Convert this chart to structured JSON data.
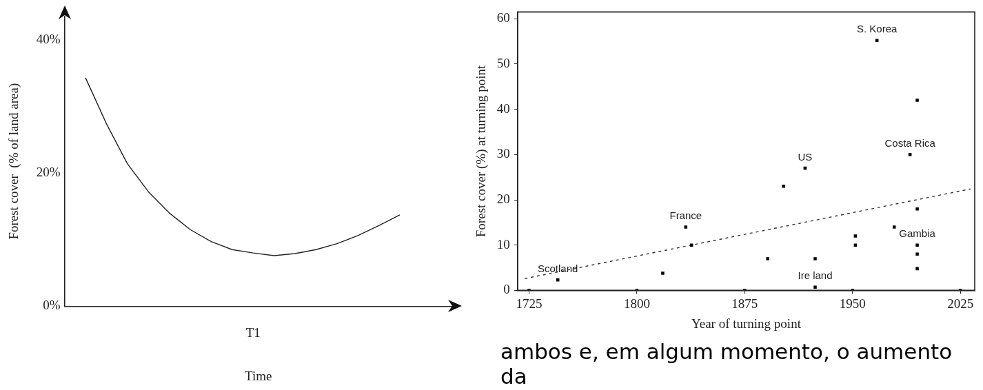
{
  "chart_data": [
    {
      "type": "line",
      "xlabel": "Time",
      "ylabel": "Forest cover  (% of land area)",
      "categories": [
        null,
        null,
        null,
        null,
        null,
        null,
        null,
        null,
        "T1",
        null,
        null,
        null,
        null,
        null,
        null,
        null
      ],
      "series": [
        {
          "color": "#222222",
          "values": [
            34.3,
            27.4,
            21.4,
            17.2,
            14.0,
            11.5,
            9.7,
            8.5,
            8.0,
            7.6,
            7.9,
            8.5,
            9.4,
            10.6,
            12.1,
            13.7
          ]
        }
      ],
      "ylim": [
        0,
        43.5
      ],
      "yticks": [
        {
          "value": 0,
          "label": "0%"
        },
        {
          "value": 20,
          "label": "20%"
        },
        {
          "value": 40,
          "label": "40%"
        }
      ],
      "grid": false,
      "legend": false,
      "marker": "none",
      "line_style": "solid"
    },
    {
      "type": "scatter",
      "xlabel": "Year of turning point",
      "ylabel": "Forest cover (%) at turning point",
      "series": [
        {
          "color": "#000000",
          "marker": "square",
          "x": [
            1725,
            1745,
            1800,
            1818,
            1834,
            1838,
            1875,
            1891,
            1902,
            1917,
            1924,
            1924,
            1950,
            1952,
            1952,
            1967,
            1979,
            1990,
            1995,
            1995,
            1995,
            1995,
            1995,
            2025
          ],
          "values": [
            0,
            2.3,
            0,
            3.8,
            14,
            10,
            0,
            7,
            23,
            27,
            7,
            0.7,
            0,
            12,
            10,
            55.2,
            14,
            30,
            42,
            18,
            10,
            8,
            4.8,
            0
          ]
        },
        {
          "type": "line",
          "marker": "none",
          "line_style": "dashed",
          "color": "#333333",
          "x": [
            1722,
            2032
          ],
          "values": [
            2.6,
            22.4
          ]
        }
      ],
      "xlim": [
        1717,
        2035
      ],
      "xticks": [
        1725,
        1800,
        1875,
        1950,
        2025
      ],
      "ylim": [
        0,
        61.5
      ],
      "yticks": [
        0,
        10,
        20,
        30,
        40,
        50,
        60
      ],
      "annotations": [
        {
          "text": "S. Korea",
          "x": 1967,
          "y": 55.2
        },
        {
          "text": "Costa Rica",
          "x": 1990,
          "y": 30
        },
        {
          "text": "US",
          "x": 1917,
          "y": 27
        },
        {
          "text": "France",
          "x": 1834,
          "y": 14
        },
        {
          "text": "Gambia",
          "x": 1995,
          "y": 10
        },
        {
          "text": "Scotland",
          "x": 1745,
          "y": 2.3
        },
        {
          "text": "Ire land",
          "x": 1924,
          "y": 0.7
        },
        "ambos e, em algum momento, o aumento da"
      ],
      "grid": false,
      "legend": false
    }
  ]
}
